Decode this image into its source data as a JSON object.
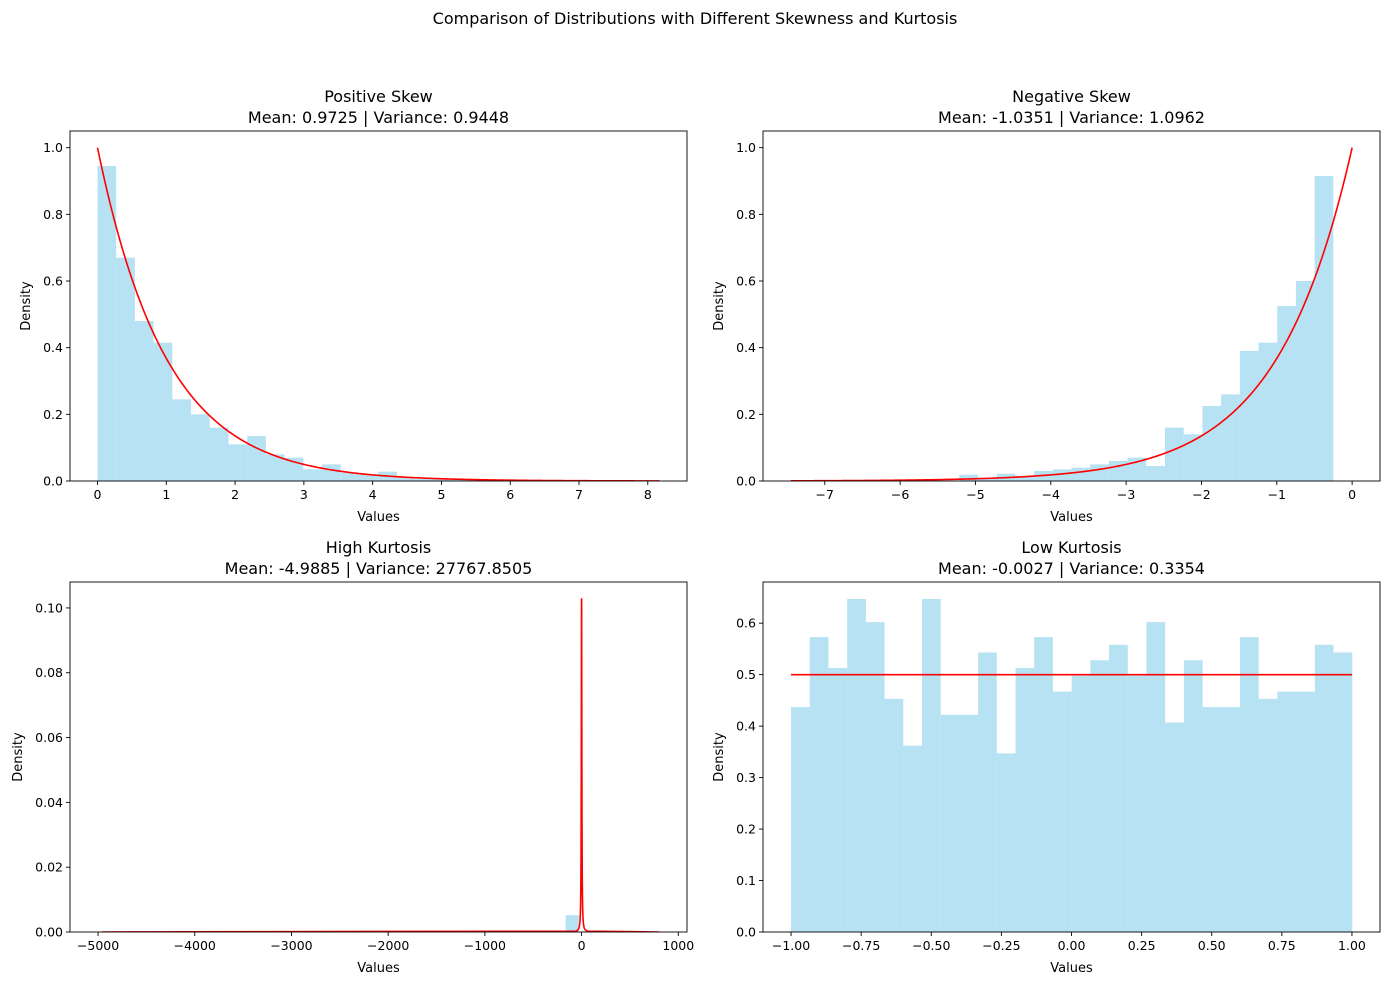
{
  "figure": {
    "suptitle": "Comparison of Distributions with Different Skewness and Kurtosis"
  },
  "colors": {
    "hist_fill": "#87ceeb",
    "hist_opacity": 0.6,
    "curve": "#ff0000",
    "axis": "#000000",
    "background": "#ffffff"
  },
  "chart_data": [
    {
      "type": "bar",
      "subtype": "histogram-with-pdf",
      "title": "Positive Skew",
      "subtitle": "Mean: 0.9725 | Variance: 0.9448",
      "xlabel": "Values",
      "ylabel": "Density",
      "xlim": [
        -0.4,
        8.57
      ],
      "ylim": [
        0,
        1.05
      ],
      "xticks": [
        0,
        1,
        2,
        3,
        4,
        5,
        6,
        7,
        8
      ],
      "xtick_labels": [
        "0",
        "1",
        "2",
        "3",
        "4",
        "5",
        "6",
        "7",
        "8"
      ],
      "yticks": [
        0.0,
        0.2,
        0.4,
        0.6,
        0.8,
        1.0
      ],
      "ytick_labels": [
        "0.0",
        "0.2",
        "0.4",
        "0.6",
        "0.8",
        "1.0"
      ],
      "bins": {
        "start": 0.0,
        "width": 0.272,
        "count": 30
      },
      "values": [
        0.945,
        0.67,
        0.48,
        0.415,
        0.245,
        0.2,
        0.16,
        0.11,
        0.135,
        0.08,
        0.07,
        0.035,
        0.05,
        0.025,
        0.02,
        0.028,
        0.01,
        0.006,
        0.006,
        0.004,
        0.003,
        0.002,
        0.002,
        0.001,
        0.002,
        0.001,
        0.001,
        0.0,
        0.001,
        0.0
      ],
      "curve": {
        "kind": "exp_decay",
        "rate": 1.0,
        "amplitude": 1.0,
        "x_from": 0.0,
        "x_to": 8.17
      }
    },
    {
      "type": "bar",
      "subtype": "histogram-with-pdf",
      "title": "Negative Skew",
      "subtitle": "Mean: -1.0351 | Variance: 1.0962",
      "xlabel": "Values",
      "ylabel": "Density",
      "xlim": [
        -7.82,
        0.37
      ],
      "ylim": [
        0,
        1.05
      ],
      "xticks": [
        -7,
        -6,
        -5,
        -4,
        -3,
        -2,
        -1,
        0
      ],
      "xtick_labels": [
        "−7",
        "−6",
        "−5",
        "−4",
        "−3",
        "−2",
        "−1",
        "0"
      ],
      "yticks": [
        0.0,
        0.2,
        0.4,
        0.6,
        0.8,
        1.0
      ],
      "ytick_labels": [
        "0.0",
        "0.2",
        "0.4",
        "0.6",
        "0.8",
        "1.0"
      ],
      "bins": {
        "start": -7.45,
        "width": 0.2483,
        "count": 30
      },
      "values": [
        0.0,
        0.0,
        0.0,
        0.0,
        0.0,
        0.0,
        0.0,
        0.0,
        0.0,
        0.019,
        0.01,
        0.022,
        0.015,
        0.03,
        0.035,
        0.04,
        0.05,
        0.06,
        0.07,
        0.045,
        0.16,
        0.14,
        0.225,
        0.26,
        0.39,
        0.415,
        0.525,
        0.6,
        0.915,
        0.0
      ],
      "curve": {
        "kind": "exp_growth",
        "rate": 1.0,
        "amplitude": 1.0,
        "x_from": -7.45,
        "x_to": 0.0
      }
    },
    {
      "type": "bar",
      "subtype": "histogram-with-pdf",
      "title": "High Kurtosis",
      "subtitle": "Mean: -4.9885 | Variance: 27767.8505",
      "xlabel": "Values",
      "ylabel": "Density",
      "xlim": [
        -5290,
        1090
      ],
      "ylim": [
        0,
        0.108
      ],
      "xticks": [
        -5000,
        -4000,
        -3000,
        -2000,
        -1000,
        0,
        1000
      ],
      "xtick_labels": [
        "−5000",
        "−4000",
        "−3000",
        "−2000",
        "−1000",
        "0",
        "1000"
      ],
      "yticks": [
        0.0,
        0.02,
        0.04,
        0.06,
        0.08,
        0.1
      ],
      "ytick_labels": [
        "0.00",
        "0.02",
        "0.04",
        "0.06",
        "0.08",
        "0.10"
      ],
      "bins": {
        "start": -4960,
        "width": 192,
        "count": 30
      },
      "values": [
        0.0,
        0.0,
        0.0,
        0.0,
        0.0,
        0.0,
        0.0,
        0.0,
        0.0,
        0.0,
        0.0,
        0.0,
        0.0,
        0.0,
        0.0,
        0.0,
        0.0,
        0.0,
        0.0,
        0.0,
        0.0,
        0.0,
        0.0,
        0.0,
        0.0,
        0.0,
        0.0,
        0.0,
        0.0,
        0.0
      ],
      "peak_bin": {
        "x_from": -165,
        "x_to": -28,
        "value": 0.0052
      },
      "curve": {
        "kind": "cauchy",
        "gamma": 3.09,
        "amplitude": 0.103,
        "x_from": -4960,
        "x_to": 800
      }
    },
    {
      "type": "bar",
      "subtype": "histogram-with-pdf",
      "title": "Low Kurtosis",
      "subtitle": "Mean: -0.0027 | Variance: 0.3354",
      "xlabel": "Values",
      "ylabel": "Density",
      "xlim": [
        -1.1,
        1.1
      ],
      "ylim": [
        0,
        0.68
      ],
      "xticks": [
        -1.0,
        -0.75,
        -0.5,
        -0.25,
        0.0,
        0.25,
        0.5,
        0.75,
        1.0
      ],
      "xtick_labels": [
        "−1.00",
        "−0.75",
        "−0.50",
        "−0.25",
        "0.00",
        "0.25",
        "0.50",
        "0.75",
        "1.00"
      ],
      "yticks": [
        0.0,
        0.1,
        0.2,
        0.3,
        0.4,
        0.5,
        0.6
      ],
      "ytick_labels": [
        "0.0",
        "0.1",
        "0.2",
        "0.3",
        "0.4",
        "0.5",
        "0.6"
      ],
      "bins": {
        "start": -1.0,
        "width": 0.0667,
        "count": 30
      },
      "values": [
        0.437,
        0.573,
        0.513,
        0.647,
        0.602,
        0.453,
        0.362,
        0.647,
        0.422,
        0.422,
        0.543,
        0.347,
        0.513,
        0.573,
        0.467,
        0.498,
        0.528,
        0.558,
        0.498,
        0.602,
        0.407,
        0.528,
        0.437,
        0.437,
        0.573,
        0.453,
        0.467,
        0.467,
        0.558,
        0.543
      ],
      "curve": {
        "kind": "constant",
        "value": 0.5,
        "x_from": -1.0,
        "x_to": 1.0
      }
    }
  ]
}
